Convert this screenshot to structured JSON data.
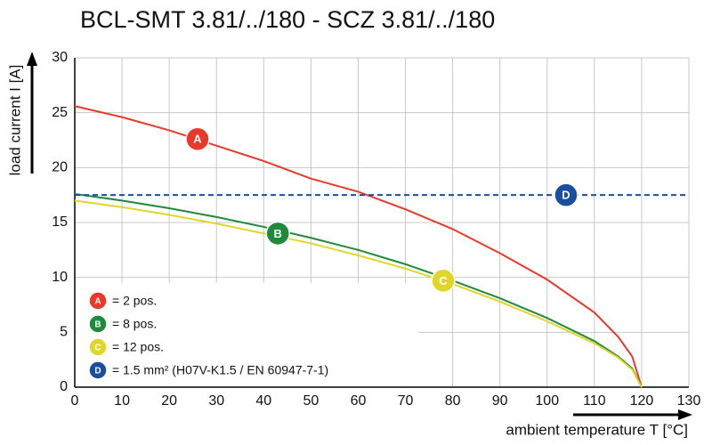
{
  "chart_data": {
    "type": "line",
    "title": "BCL-SMT 3.81/../180 - SCZ 3.81/../180",
    "y_label": "load current I [A]",
    "x_label": "ambient temperature T [°C]",
    "xlim": [
      0,
      130
    ],
    "ylim": [
      0,
      30
    ],
    "xticks": [
      0,
      10,
      20,
      30,
      40,
      50,
      60,
      70,
      80,
      90,
      100,
      110,
      120,
      130
    ],
    "yticks": [
      0,
      5,
      10,
      15,
      20,
      25,
      30
    ],
    "grid": true,
    "series": [
      {
        "name": "= 2 pos.",
        "label": "A",
        "color": "#e8392a",
        "dashed": false,
        "x": [
          0,
          10,
          20,
          30,
          40,
          50,
          60,
          70,
          80,
          90,
          100,
          110,
          115,
          118,
          120
        ],
        "values": [
          25.6,
          24.6,
          23.4,
          22.0,
          20.6,
          19.0,
          17.8,
          16.2,
          14.4,
          12.2,
          9.8,
          6.8,
          4.6,
          2.8,
          0
        ],
        "marker": {
          "x": 26,
          "y": 22.6
        }
      },
      {
        "name": "= 8 pos.",
        "label": "B",
        "color": "#1f8a3c",
        "dashed": false,
        "x": [
          0,
          10,
          20,
          30,
          40,
          50,
          60,
          70,
          80,
          90,
          100,
          110,
          115,
          118,
          120
        ],
        "values": [
          17.6,
          17.0,
          16.3,
          15.5,
          14.6,
          13.6,
          12.5,
          11.2,
          9.7,
          8.1,
          6.3,
          4.2,
          2.8,
          1.7,
          0
        ],
        "marker": {
          "x": 43,
          "y": 14
        }
      },
      {
        "name": "= 12 pos.",
        "label": "C",
        "color": "#e0d62a",
        "dashed": false,
        "x": [
          0,
          10,
          20,
          30,
          40,
          50,
          60,
          70,
          80,
          90,
          100,
          110,
          115,
          118,
          120
        ],
        "values": [
          17.0,
          16.4,
          15.7,
          14.9,
          14.0,
          13.1,
          12.0,
          10.8,
          9.4,
          7.8,
          6.0,
          4.0,
          2.7,
          1.6,
          0
        ],
        "marker": {
          "x": 78,
          "y": 9.7
        }
      },
      {
        "name": "= 1.5 mm² (H07V-K1.5 / EN 60947-7-1)",
        "label": "D",
        "color": "#1a4fa0",
        "dashed": true,
        "x": [
          0,
          130
        ],
        "values": [
          17.5,
          17.5
        ],
        "marker": {
          "x": 104,
          "y": 17.5
        }
      }
    ]
  }
}
